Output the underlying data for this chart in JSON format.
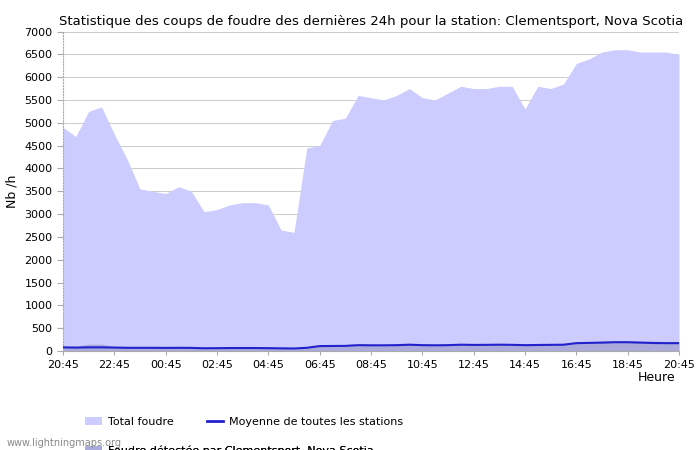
{
  "title": "Statistique des coups de foudre des dernières 24h pour la station: Clementsport, Nova Scotia",
  "xlabel": "Heure",
  "ylabel": "Nb /h",
  "ylim": [
    0,
    7000
  ],
  "yticks": [
    0,
    500,
    1000,
    1500,
    2000,
    2500,
    3000,
    3500,
    4000,
    4500,
    5000,
    5500,
    6000,
    6500,
    7000
  ],
  "x_labels": [
    "20:45",
    "22:45",
    "00:45",
    "02:45",
    "04:45",
    "06:45",
    "08:45",
    "10:45",
    "12:45",
    "14:45",
    "16:45",
    "18:45",
    "20:45"
  ],
  "total_foudre": [
    4900,
    4700,
    5250,
    5350,
    4750,
    4200,
    3550,
    3500,
    3450,
    3600,
    3500,
    3050,
    3100,
    3200,
    3250,
    3250,
    3200,
    2650,
    2600,
    4450,
    4500,
    5050,
    5100,
    5600,
    5550,
    5500,
    5600,
    5750,
    5550,
    5500,
    5650,
    5800,
    5750,
    5750,
    5800,
    5800,
    5300,
    5800,
    5750,
    5850,
    6300,
    6400,
    6550,
    6600,
    6600,
    6550,
    6550,
    6550,
    6500
  ],
  "local_foudre": [
    100,
    100,
    150,
    150,
    100,
    100,
    80,
    80,
    80,
    80,
    80,
    70,
    70,
    70,
    75,
    75,
    70,
    65,
    60,
    80,
    120,
    120,
    130,
    145,
    140,
    140,
    145,
    160,
    150,
    140,
    150,
    160,
    155,
    155,
    160,
    155,
    150,
    155,
    155,
    160,
    195,
    205,
    220,
    230,
    230,
    220,
    215,
    210,
    210
  ],
  "moyenne": [
    80,
    75,
    80,
    80,
    75,
    70,
    70,
    70,
    68,
    70,
    68,
    60,
    62,
    65,
    65,
    65,
    62,
    58,
    55,
    70,
    108,
    110,
    112,
    128,
    125,
    125,
    128,
    138,
    128,
    125,
    128,
    138,
    133,
    135,
    138,
    135,
    128,
    132,
    135,
    138,
    172,
    178,
    183,
    192,
    192,
    183,
    175,
    172,
    172
  ],
  "fill_color_total": "#ccccff",
  "fill_color_local": "#aaaadd",
  "line_color_moyenne": "#2222cc",
  "background_color": "#ffffff",
  "grid_color": "#cccccc",
  "tick_color": "#555555",
  "watermark": "www.lightningmaps.org"
}
